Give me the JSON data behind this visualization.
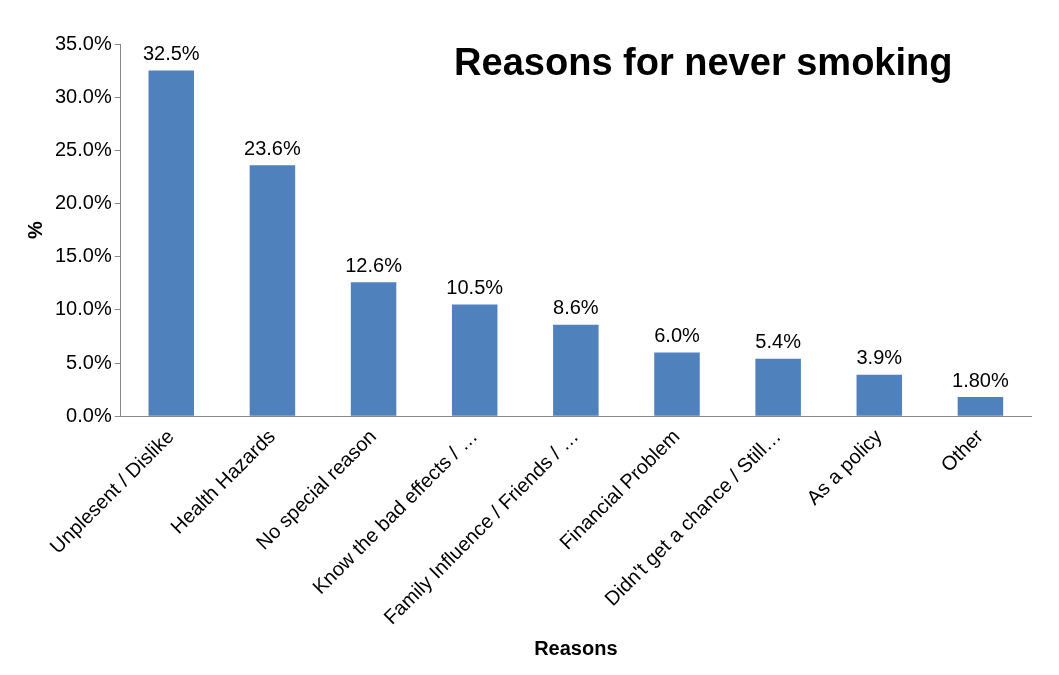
{
  "chart_data": {
    "type": "bar",
    "title": "Reasons for never smoking",
    "xlabel": "Reasons",
    "ylabel": "%",
    "categories": [
      "Unplesent / Dislike",
      "Health Hazards",
      "No special reason",
      "Know the bad effects / …",
      "Family Influence / Friends / …",
      "Financial Problem",
      "Didn't get a chance / Still…",
      "As a policy",
      "Other"
    ],
    "values": [
      32.5,
      23.6,
      12.6,
      10.5,
      8.6,
      6.0,
      5.4,
      3.9,
      1.8
    ],
    "value_labels": [
      "32.5%",
      "23.6%",
      "12.6%",
      "10.5%",
      "8.6%",
      "6.0%",
      "5.4%",
      "3.9%",
      "1.80%"
    ],
    "color": "#4f81bd",
    "ylim": [
      0,
      35
    ],
    "yticks": [
      {
        "value": 0,
        "label": "0.0%"
      },
      {
        "value": 5,
        "label": "5.0%"
      },
      {
        "value": 10,
        "label": "10.0%"
      },
      {
        "value": 15,
        "label": "15.0%"
      },
      {
        "value": 20,
        "label": "20.0%"
      },
      {
        "value": 25,
        "label": "25.0%"
      },
      {
        "value": 30,
        "label": "30.0%"
      },
      {
        "value": 35,
        "label": "35.0%"
      }
    ],
    "grid": false,
    "legend": false
  }
}
